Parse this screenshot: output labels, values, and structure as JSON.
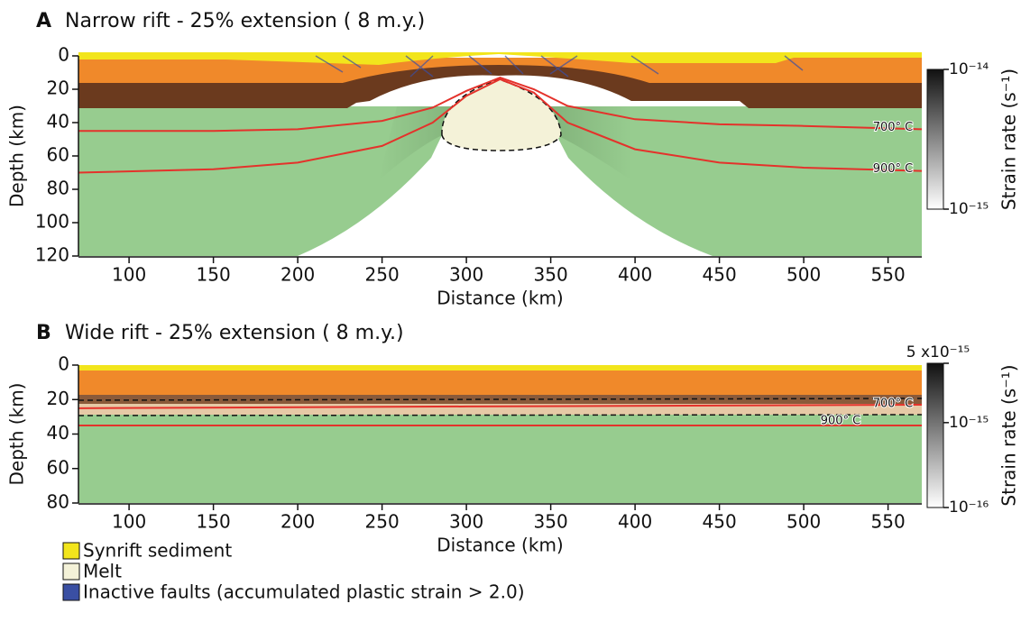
{
  "chart_data": [
    {
      "type": "cross-section",
      "panel": "A",
      "title": "Narrow rift - 25% extension ( 8 m.y.)",
      "xlabel": "Distance (km)",
      "ylabel": "Depth (km)",
      "xlim": [
        70,
        570
      ],
      "xticks": [
        100,
        150,
        200,
        250,
        300,
        350,
        400,
        450,
        500,
        550
      ],
      "ylim": [
        0,
        120
      ],
      "yticks": [
        0,
        20,
        40,
        60,
        80,
        100,
        120
      ],
      "y_inverted": true,
      "series": [
        {
          "name": "700° C",
          "color": "#e4322b",
          "x": [
            70,
            150,
            200,
            250,
            280,
            300,
            320,
            340,
            360,
            400,
            450,
            500,
            570
          ],
          "values": [
            45,
            45,
            44,
            39,
            31,
            21,
            13,
            20,
            30,
            38,
            41,
            42,
            44
          ]
        },
        {
          "name": "900° C",
          "color": "#e4322b",
          "x": [
            70,
            150,
            200,
            250,
            280,
            300,
            320,
            340,
            360,
            400,
            450,
            500,
            570
          ],
          "values": [
            70,
            68,
            64,
            54,
            40,
            24,
            14,
            22,
            40,
            56,
            64,
            67,
            69
          ]
        }
      ],
      "colorbar": {
        "label": "Strain rate (s⁻¹)",
        "log": true,
        "lim": [
          1e-15,
          1e-14
        ],
        "ticks": [
          {
            "value": 1e-14,
            "label": "10⁻¹⁴"
          },
          {
            "value": 1e-15,
            "label": "10⁻¹⁵"
          }
        ]
      }
    },
    {
      "type": "cross-section",
      "panel": "B",
      "title": "Wide rift - 25% extension ( 8 m.y.)",
      "xlabel": "Distance (km)",
      "ylabel": "Depth (km)",
      "xlim": [
        70,
        570
      ],
      "xticks": [
        100,
        150,
        200,
        250,
        300,
        350,
        400,
        450,
        500,
        550
      ],
      "ylim": [
        0,
        80
      ],
      "yticks": [
        0,
        20,
        40,
        60,
        80
      ],
      "y_inverted": true,
      "series": [
        {
          "name": "700° C",
          "color": "#e4322b",
          "x": [
            70,
            300,
            570
          ],
          "values": [
            25,
            24,
            23
          ]
        },
        {
          "name": "900° C",
          "color": "#e4322b",
          "x": [
            70,
            570
          ],
          "values": [
            35,
            35
          ]
        }
      ],
      "colorbar": {
        "label": "Strain rate (s⁻¹)",
        "log": true,
        "lim": [
          1e-16,
          5e-15
        ],
        "ticks": [
          {
            "value": 5e-15,
            "label": "5 x10⁻¹⁵"
          },
          {
            "value": 1e-15,
            "label": "10⁻¹⁵"
          },
          {
            "value": 1e-16,
            "label": "10⁻¹⁶"
          }
        ]
      }
    }
  ],
  "legend": {
    "items": [
      {
        "label": "Synrift sediment",
        "color": "#f2e51c"
      },
      {
        "label": "Melt",
        "color": "#f4f2d8"
      },
      {
        "label": "Inactive faults (accumulated plastic strain > 2.0)",
        "color": "#3a4fa3"
      }
    ]
  }
}
